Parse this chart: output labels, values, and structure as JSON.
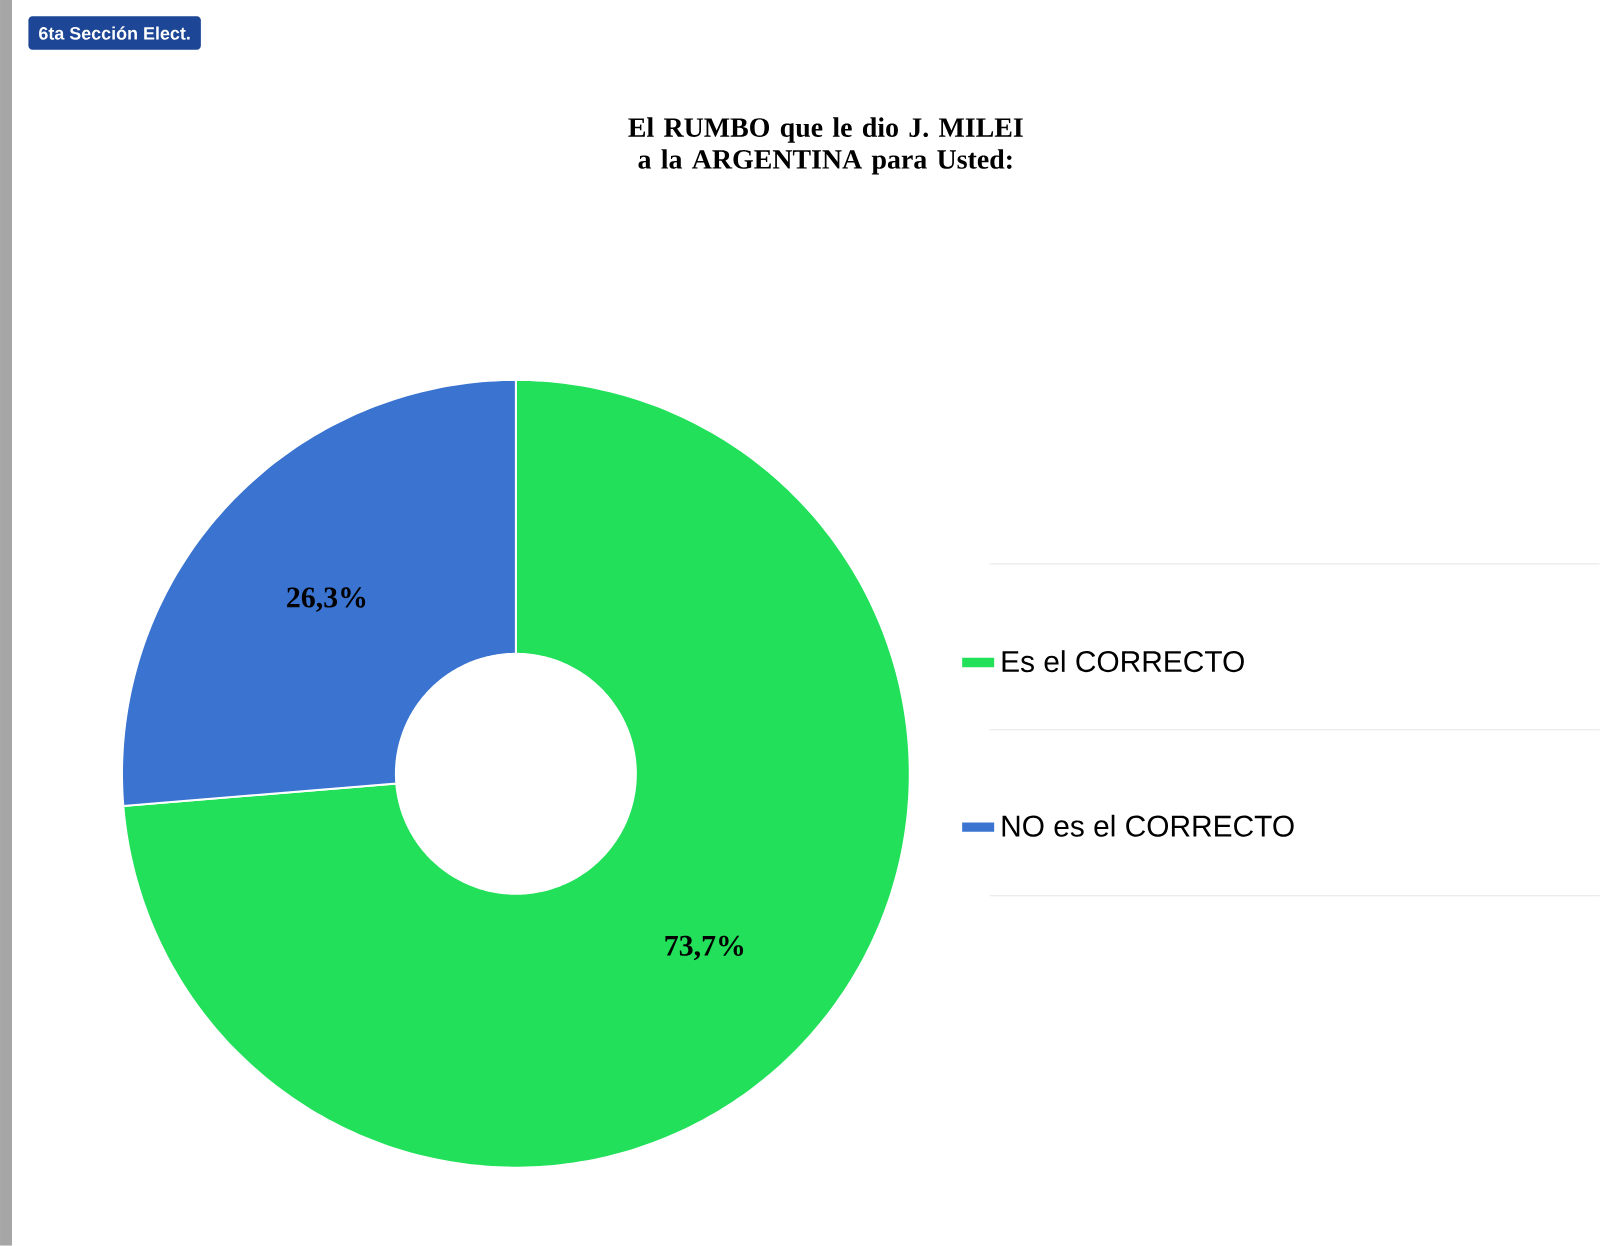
{
  "chart_data": {
    "type": "donut",
    "title": "El RUMBO que le dio J. MILEI a la ARGENTINA para Usted:",
    "annotations": [
      "6ta Sección Elect."
    ],
    "categories": [
      "Es el CORRECTO",
      "NO es el CORRECTO"
    ],
    "values": [
      73.7,
      26.3
    ],
    "colors": [
      "#22e05a",
      "#3a74d0"
    ],
    "value_labels": [
      "73,7%",
      "26,3%"
    ],
    "legend": "right"
  }
}
